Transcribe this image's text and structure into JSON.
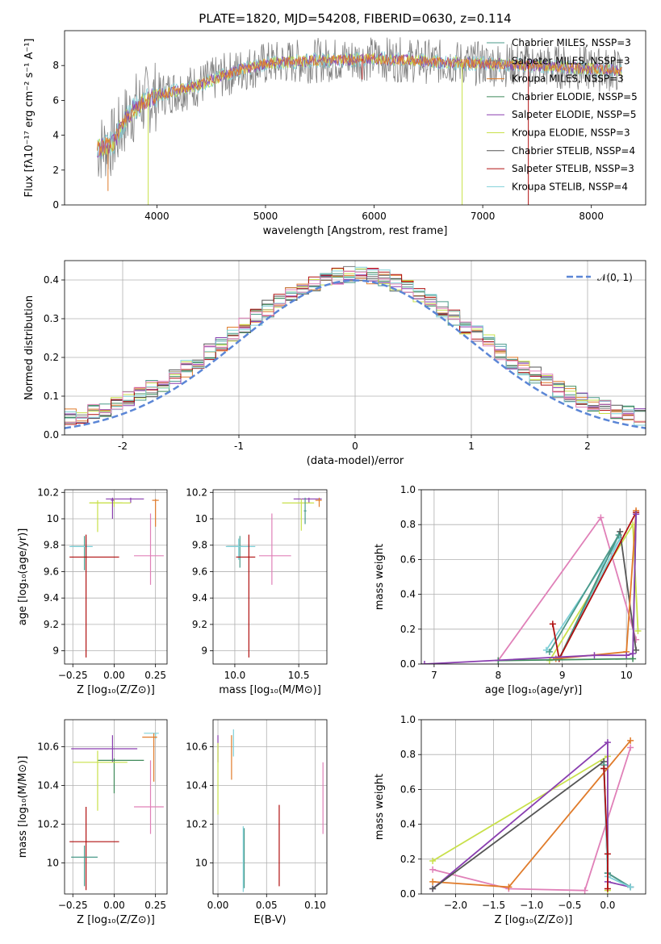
{
  "figure_title": "PLATE=1820, MJD=54208, FIBERID=0630, z=0.114",
  "colors": {
    "chabrier_miles": "#4a9a8a",
    "salpeter_miles": "#7a7a7a",
    "kroupa_miles": "#e07b2a",
    "chabrier_elodie": "#3f8a5a",
    "salpeter_elodie": "#8a3fb0",
    "kroupa_elodie": "#c8e04a",
    "chabrier_stelib": "#555555",
    "salpeter_stelib": "#b01010",
    "kroupa_stelib": "#7fd0d8",
    "gauss": "#5b86d6",
    "pink": "#e080b8"
  },
  "chart_data": [
    {
      "id": "spectrum",
      "type": "line",
      "title": "PLATE=1820, MJD=54208, FIBERID=0630, z=0.114",
      "xlabel": "wavelength [Angstrom, rest frame]",
      "ylabel": "Flux [fλ10⁻¹⁷ erg cm⁻² s⁻¹ A⁻¹]",
      "xlim": [
        3150,
        8500
      ],
      "ylim": [
        0,
        10
      ],
      "xticks": [
        4000,
        5000,
        6000,
        7000,
        8000
      ],
      "yticks": [
        0,
        2,
        4,
        6,
        8
      ],
      "legend": "right",
      "legend_entries": [
        {
          "label": "Chabrier MILES, NSSP=3",
          "color": "#4a9a8a"
        },
        {
          "label": "Salpeter MILES, NSSP=3",
          "color": "#7a7a7a"
        },
        {
          "label": "Kroupa MILES, NSSP=3",
          "color": "#e07b2a"
        },
        {
          "label": "Chabrier ELODIE, NSSP=5",
          "color": "#3f8a5a"
        },
        {
          "label": "Salpeter ELODIE, NSSP=5",
          "color": "#8a3fb0"
        },
        {
          "label": "Kroupa ELODIE, NSSP=3",
          "color": "#c8e04a"
        },
        {
          "label": "Chabrier STELIB, NSSP=4",
          "color": "#555555"
        },
        {
          "label": "Salpeter STELIB, NSSP=3",
          "color": "#b01010"
        },
        {
          "label": "Kroupa STELIB, NSSP=4",
          "color": "#7fd0d8"
        }
      ],
      "continuum": [
        [
          3450,
          3.2
        ],
        [
          3600,
          3.6
        ],
        [
          3700,
          4.8
        ],
        [
          3800,
          5.6
        ],
        [
          3900,
          6.0
        ],
        [
          4000,
          6.3
        ],
        [
          4200,
          6.6
        ],
        [
          4400,
          6.9
        ],
        [
          4600,
          7.4
        ],
        [
          4800,
          7.8
        ],
        [
          5000,
          8.1
        ],
        [
          5200,
          8.2
        ],
        [
          5500,
          8.3
        ],
        [
          5800,
          8.35
        ],
        [
          6000,
          8.4
        ],
        [
          6300,
          8.3
        ],
        [
          6600,
          8.2
        ],
        [
          7000,
          8.1
        ],
        [
          7500,
          8.0
        ],
        [
          8000,
          7.8
        ],
        [
          8280,
          7.7
        ]
      ],
      "dips": [
        [
          3550,
          0.8,
          "#e07b2a"
        ],
        [
          3920,
          0,
          "#c8e04a"
        ],
        [
          6810,
          0,
          "#c8e04a"
        ],
        [
          7420,
          0,
          "#b01010"
        ],
        [
          5890,
          7.2,
          "#b01010"
        ]
      ]
    },
    {
      "id": "residuals",
      "type": "line",
      "xlabel": "(data-model)/error",
      "ylabel": "Normed distribution",
      "xlim": [
        -2.5,
        2.5
      ],
      "ylim": [
        0,
        0.45
      ],
      "xticks": [
        -2,
        -1,
        0,
        1,
        2
      ],
      "yticks": [
        0.0,
        0.1,
        0.2,
        0.3,
        0.4
      ],
      "legend": "top-right",
      "legend_label": "𝒩(0, 1)",
      "gauss": {
        "mu": 0,
        "sigma": 1
      }
    },
    {
      "id": "age_vs_Z",
      "type": "scatter",
      "xlabel": "Z [log₁₀(Z/Z⊙)]",
      "ylabel": "age  [log₁₀(age/yr)]",
      "xlim": [
        -0.3,
        0.32
      ],
      "ylim": [
        8.9,
        10.22
      ],
      "xticks": [
        -0.25,
        0.0,
        0.25
      ],
      "xticklabels": [
        "−0.25",
        "0.00",
        "0.25"
      ],
      "yticks": [
        9.0,
        9.2,
        9.4,
        9.6,
        9.8,
        10.0,
        10.2
      ],
      "points": [
        {
          "x": 0.1,
          "y": 10.15,
          "xerr": [
            0.15,
            0.08
          ],
          "yerr": [
            0.03,
            0.01
          ],
          "color": "#8a3fb0"
        },
        {
          "x": 0.25,
          "y": 10.14,
          "xerr": [
            0.02,
            0.02
          ],
          "yerr": [
            0.2,
            0.01
          ],
          "color": "#e07b2a"
        },
        {
          "x": 0.0,
          "y": 10.12,
          "xerr": [
            0.15,
            0.1
          ],
          "yerr": [
            0.03,
            0.03
          ],
          "color": "#c8e04a"
        },
        {
          "x": -0.1,
          "y": 10.12,
          "xerr": [
            0.05,
            0.15
          ],
          "yerr": [
            0.22,
            0.02
          ],
          "color": "#c8e04a"
        },
        {
          "x": -0.18,
          "y": 9.79,
          "xerr": [
            0.08,
            0.0
          ],
          "yerr": [
            0.18,
            0.08
          ],
          "color": "#4a9a8a"
        },
        {
          "x": -0.17,
          "y": 9.79,
          "xerr": [
            0.1,
            0.04
          ],
          "yerr": [
            0.1,
            0.05
          ],
          "color": "#7fd0d8"
        },
        {
          "x": -0.17,
          "y": 9.71,
          "xerr": [
            0.1,
            0.2
          ],
          "yerr": [
            0.76,
            0.17
          ],
          "color": "#b01010"
        },
        {
          "x": 0.22,
          "y": 9.72,
          "xerr": [
            0.1,
            0.08
          ],
          "yerr": [
            0.22,
            0.32
          ],
          "color": "#e080b8"
        },
        {
          "x": -0.01,
          "y": 10.14,
          "xerr": [
            0.01,
            0.01
          ],
          "yerr": [
            0.14,
            0.02
          ],
          "color": "#8a3fb0"
        }
      ]
    },
    {
      "id": "age_vs_mass",
      "type": "scatter",
      "xlabel": "mass [log₁₀(M/M⊙)]",
      "ylabel": "",
      "xlim": [
        9.83,
        10.72
      ],
      "ylim": [
        8.9,
        10.22
      ],
      "xticks": [
        10.0,
        10.5
      ],
      "xticklabels": [
        "10.0",
        "10.5"
      ],
      "yticks": [
        9.0,
        9.2,
        9.4,
        9.6,
        9.8,
        10.0,
        10.2
      ],
      "points": [
        {
          "x": 10.58,
          "y": 10.15,
          "xerr": [
            0.12,
            0.1
          ],
          "yerr": [
            0.03,
            0.01
          ],
          "color": "#8a3fb0"
        },
        {
          "x": 10.66,
          "y": 10.14,
          "xerr": [
            0.03,
            0.02
          ],
          "yerr": [
            0.05,
            0.02
          ],
          "color": "#e07b2a"
        },
        {
          "x": 10.52,
          "y": 10.12,
          "xerr": [
            0.15,
            0.1
          ],
          "yerr": [
            0.21,
            0.03
          ],
          "color": "#c8e04a"
        },
        {
          "x": 10.04,
          "y": 9.79,
          "xerr": [
            0.1,
            0.02
          ],
          "yerr": [
            0.16,
            0.08
          ],
          "color": "#4a9a8a"
        },
        {
          "x": 10.03,
          "y": 9.79,
          "xerr": [
            0.1,
            0.13
          ],
          "yerr": [
            0.1,
            0.06
          ],
          "color": "#7fd0d8"
        },
        {
          "x": 10.11,
          "y": 9.71,
          "xerr": [
            0.1,
            0.05
          ],
          "yerr": [
            0.76,
            0.17
          ],
          "color": "#b01010"
        },
        {
          "x": 10.29,
          "y": 9.72,
          "xerr": [
            0.1,
            0.15
          ],
          "yerr": [
            0.22,
            0.32
          ],
          "color": "#e080b8"
        },
        {
          "x": 10.55,
          "y": 10.06,
          "xerr": [
            0.01,
            0.01
          ],
          "yerr": [
            0.1,
            0.1
          ],
          "color": "#4a9a8a"
        }
      ]
    },
    {
      "id": "weight_vs_age",
      "type": "line",
      "xlabel": "age  [log₁₀(age/yr)]",
      "ylabel": "mass weight",
      "xlim": [
        6.8,
        10.3
      ],
      "ylim": [
        0,
        1
      ],
      "xticks": [
        7,
        8,
        9,
        10
      ],
      "yticks": [
        0.0,
        0.2,
        0.4,
        0.6,
        0.8,
        1.0
      ],
      "series": [
        {
          "color": "#e080b8",
          "points": [
            [
              8.0,
              0.02
            ],
            [
              9.6,
              0.84
            ],
            [
              10.15,
              0.14
            ]
          ]
        },
        {
          "color": "#c8e04a",
          "points": [
            [
              8.8,
              0.02
            ],
            [
              10.1,
              0.8
            ],
            [
              10.18,
              0.19
            ]
          ]
        },
        {
          "color": "#555555",
          "points": [
            [
              8.95,
              0.03
            ],
            [
              9.9,
              0.76
            ],
            [
              10.15,
              0.08
            ]
          ]
        },
        {
          "color": "#7fd0d8",
          "points": [
            [
              8.95,
              0.03
            ],
            [
              9.9,
              0.72
            ],
            [
              8.75,
              0.08
            ]
          ]
        },
        {
          "color": "#4a9a8a",
          "points": [
            [
              8.95,
              0.03
            ],
            [
              9.88,
              0.74
            ],
            [
              8.8,
              0.07
            ]
          ]
        },
        {
          "color": "#b01010",
          "points": [
            [
              8.85,
              0.23
            ],
            [
              8.95,
              0.03
            ],
            [
              10.15,
              0.87
            ]
          ]
        },
        {
          "color": "#e07b2a",
          "points": [
            [
              8.9,
              0.03
            ],
            [
              10.0,
              0.07
            ],
            [
              10.15,
              0.88
            ]
          ]
        },
        {
          "color": "#3f8a5a",
          "points": [
            [
              8.0,
              0.02
            ],
            [
              10.1,
              0.03
            ],
            [
              10.15,
              0.86
            ]
          ]
        },
        {
          "color": "#8a3fb0",
          "points": [
            [
              6.85,
              0.0
            ],
            [
              9.5,
              0.05
            ],
            [
              10.0,
              0.05
            ],
            [
              10.1,
              0.06
            ],
            [
              10.15,
              0.86
            ]
          ]
        }
      ]
    },
    {
      "id": "mass_vs_Z",
      "type": "scatter",
      "xlabel": "Z [log₁₀(Z/Z⊙)]",
      "ylabel": "mass [log₁₀(M/M⊙)]",
      "xlim": [
        -0.3,
        0.32
      ],
      "ylim": [
        9.84,
        10.74
      ],
      "xticks": [
        -0.25,
        0.0,
        0.25
      ],
      "xticklabels": [
        "−0.25",
        "0.00",
        "0.25"
      ],
      "yticks": [
        10.0,
        10.2,
        10.4,
        10.6
      ],
      "points": [
        {
          "x": 0.25,
          "y": 10.67,
          "xerr": [
            0.07,
            0.02
          ],
          "yerr": [
            0.03,
            0.0
          ],
          "color": "#7fd0d8"
        },
        {
          "x": 0.24,
          "y": 10.65,
          "xerr": [
            0.07,
            0.02
          ],
          "yerr": [
            0.23,
            0.02
          ],
          "color": "#e07b2a"
        },
        {
          "x": -0.01,
          "y": 10.59,
          "xerr": [
            0.25,
            0.15
          ],
          "yerr": [
            0.07,
            0.07
          ],
          "color": "#8a3fb0"
        },
        {
          "x": 0.0,
          "y": 10.53,
          "xerr": [
            0.1,
            0.18
          ],
          "yerr": [
            0.17,
            0.01
          ],
          "color": "#3f8a5a"
        },
        {
          "x": -0.1,
          "y": 10.52,
          "xerr": [
            0.15,
            0.18
          ],
          "yerr": [
            0.25,
            0.06
          ],
          "color": "#c8e04a"
        },
        {
          "x": 0.22,
          "y": 10.29,
          "xerr": [
            0.1,
            0.08
          ],
          "yerr": [
            0.14,
            0.24
          ],
          "color": "#e080b8"
        },
        {
          "x": -0.17,
          "y": 10.11,
          "xerr": [
            0.1,
            0.2
          ],
          "yerr": [
            0.25,
            0.18
          ],
          "color": "#b01010"
        },
        {
          "x": -0.18,
          "y": 10.03,
          "xerr": [
            0.08,
            0.08
          ],
          "yerr": [
            0.15,
            0.06
          ],
          "color": "#4a9a8a"
        }
      ]
    },
    {
      "id": "mass_vs_ebv",
      "type": "scatter",
      "xlabel": "E(B-V)",
      "ylabel": "",
      "xlim": [
        -0.005,
        0.112
      ],
      "ylim": [
        9.84,
        10.74
      ],
      "xticks": [
        0.0,
        0.05,
        0.1
      ],
      "xticklabels": [
        "0.00",
        "0.05",
        "0.10"
      ],
      "yticks": [
        10.0,
        10.2,
        10.4,
        10.6
      ],
      "points": [
        {
          "x": 0.0,
          "y": 10.59,
          "xerr": [
            0,
            0
          ],
          "yerr": [
            0.07,
            0.07
          ],
          "color": "#8a3fb0"
        },
        {
          "x": 0.0,
          "y": 10.5,
          "xerr": [
            0,
            0
          ],
          "yerr": [
            0.25,
            0.12
          ],
          "color": "#c8e04a"
        },
        {
          "x": 0.014,
          "y": 10.55,
          "xerr": [
            0,
            0
          ],
          "yerr": [
            0.12,
            0.11
          ],
          "color": "#e07b2a"
        },
        {
          "x": 0.016,
          "y": 10.6,
          "xerr": [
            0,
            0
          ],
          "yerr": [
            0.05,
            0.09
          ],
          "color": "#7fd0d8"
        },
        {
          "x": 0.026,
          "y": 10.05,
          "xerr": [
            0,
            0
          ],
          "yerr": [
            0.2,
            0.14
          ],
          "color": "#7fd0d8"
        },
        {
          "x": 0.027,
          "y": 10.0,
          "xerr": [
            0,
            0
          ],
          "yerr": [
            0.13,
            0.18
          ],
          "color": "#4a9a8a"
        },
        {
          "x": 0.063,
          "y": 10.1,
          "xerr": [
            0,
            0
          ],
          "yerr": [
            0.22,
            0.2
          ],
          "color": "#b01010"
        },
        {
          "x": 0.108,
          "y": 10.33,
          "xerr": [
            0,
            0
          ],
          "yerr": [
            0.18,
            0.19
          ],
          "color": "#e080b8"
        }
      ]
    },
    {
      "id": "weight_vs_Z",
      "type": "line",
      "xlabel": "Z [log₁₀(Z/Z⊙)]",
      "ylabel": "mass weight",
      "xlim": [
        -2.45,
        0.5
      ],
      "ylim": [
        0,
        1
      ],
      "xticks": [
        -2.0,
        -1.5,
        -1.0,
        -0.5,
        0.0
      ],
      "xticklabels": [
        "−2.0",
        "−1.5",
        "−1.0",
        "−0.5",
        "0.0"
      ],
      "yticks": [
        0.0,
        0.2,
        0.4,
        0.6,
        0.8,
        1.0
      ],
      "series": [
        {
          "color": "#e080b8",
          "points": [
            [
              -2.3,
              0.14
            ],
            [
              -1.3,
              0.03
            ],
            [
              -0.3,
              0.02
            ],
            [
              0.3,
              0.84
            ]
          ]
        },
        {
          "color": "#c8e04a",
          "points": [
            [
              -2.3,
              0.19
            ],
            [
              0.0,
              0.79
            ],
            [
              0.0,
              0.02
            ]
          ]
        },
        {
          "color": "#8a3fb0",
          "points": [
            [
              -2.3,
              0.03
            ],
            [
              0.0,
              0.87
            ],
            [
              0.0,
              0.07
            ],
            [
              0.3,
              0.04
            ]
          ]
        },
        {
          "color": "#e07b2a",
          "points": [
            [
              -2.3,
              0.07
            ],
            [
              -1.3,
              0.04
            ],
            [
              0.3,
              0.88
            ]
          ]
        },
        {
          "color": "#555555",
          "points": [
            [
              -2.3,
              0.03
            ],
            [
              -0.05,
              0.76
            ],
            [
              0.0,
              0.12
            ],
            [
              0.3,
              0.04
            ]
          ]
        },
        {
          "color": "#4a9a8a",
          "points": [
            [
              -0.05,
              0.74
            ],
            [
              0.0,
              0.12
            ],
            [
              0.3,
              0.04
            ]
          ]
        },
        {
          "color": "#7fd0d8",
          "points": [
            [
              -0.05,
              0.72
            ],
            [
              0.0,
              0.1
            ],
            [
              0.3,
              0.04
            ]
          ]
        },
        {
          "color": "#b01010",
          "points": [
            [
              -0.05,
              0.72
            ],
            [
              0.0,
              0.23
            ],
            [
              0.0,
              0.03
            ]
          ]
        }
      ]
    }
  ]
}
